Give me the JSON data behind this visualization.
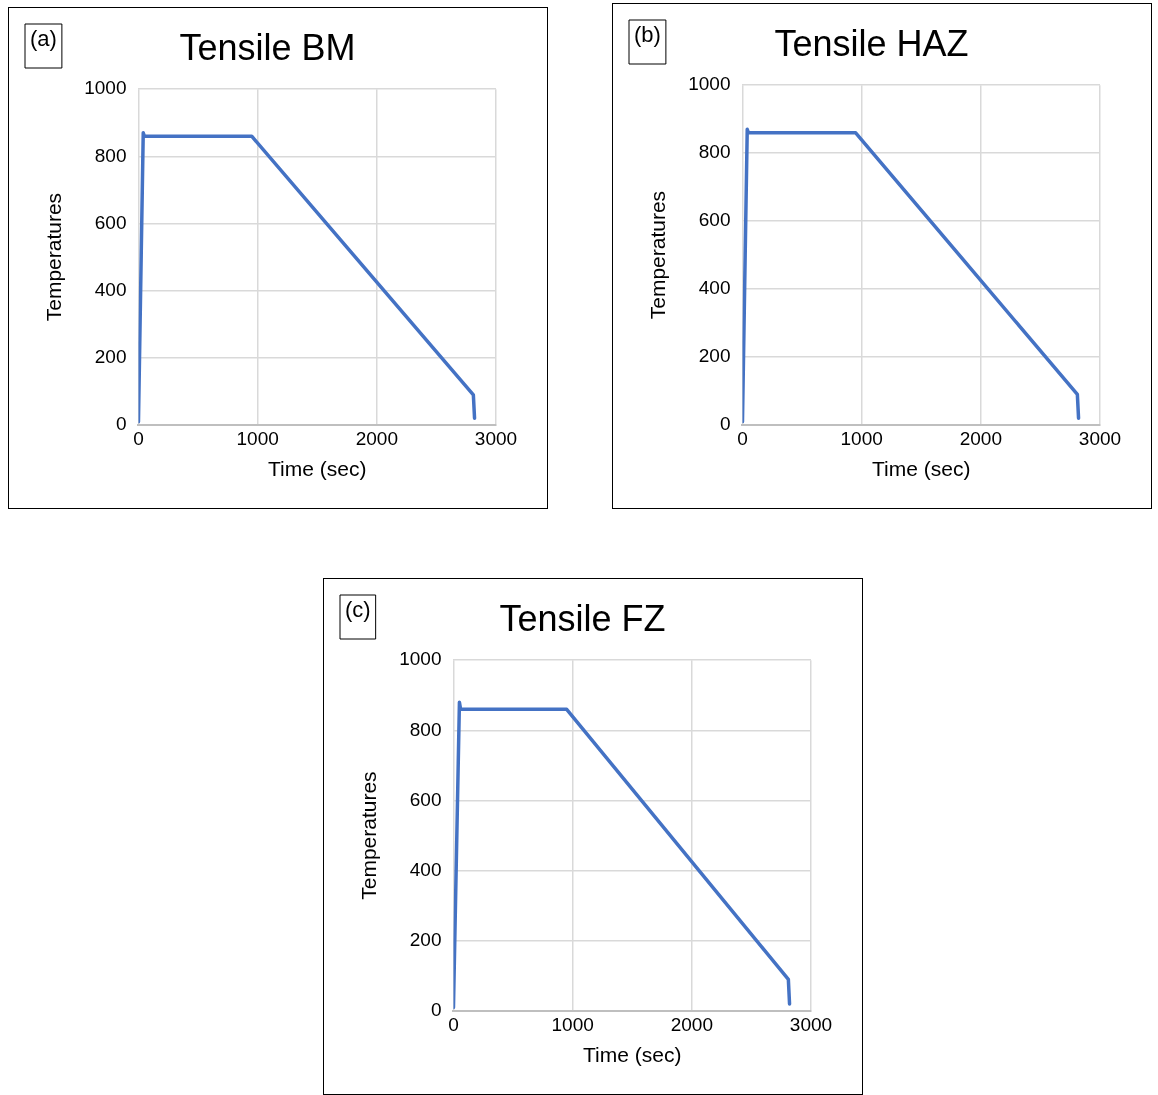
{
  "chart_data": [
    {
      "type": "line",
      "title": "Tensile BM",
      "xlabel": "Time (sec)",
      "ylabel": "Temperatures",
      "annotations": [
        "(a)"
      ],
      "xlim": [
        0,
        3000
      ],
      "xticks": [
        0,
        1000,
        2000,
        3000
      ],
      "ylim": [
        0,
        1000
      ],
      "yticks": [
        0,
        200,
        400,
        600,
        800,
        1000
      ],
      "grid": true,
      "legend": false,
      "marker": "none",
      "line_style": "solid",
      "series": [
        {
          "color": "#4472c4",
          "x": [
            0,
            40,
            50,
            950,
            2810,
            2820
          ],
          "values": [
            10,
            870,
            860,
            860,
            90,
            20
          ]
        }
      ]
    },
    {
      "type": "line",
      "title": "Tensile HAZ",
      "xlabel": "Time (sec)",
      "ylabel": "Temperatures",
      "annotations": [
        "(b)"
      ],
      "xlim": [
        0,
        3000
      ],
      "xticks": [
        0,
        1000,
        2000,
        3000
      ],
      "ylim": [
        0,
        1000
      ],
      "yticks": [
        0,
        200,
        400,
        600,
        800,
        1000
      ],
      "grid": true,
      "legend": false,
      "marker": "none",
      "line_style": "solid",
      "series": [
        {
          "color": "#4472c4",
          "x": [
            0,
            40,
            50,
            950,
            2810,
            2820
          ],
          "values": [
            10,
            870,
            860,
            860,
            90,
            20
          ]
        }
      ]
    },
    {
      "type": "line",
      "title": "Tensile FZ",
      "xlabel": "Time (sec)",
      "ylabel": "Temperatures",
      "annotations": [
        "(c)"
      ],
      "xlim": [
        0,
        3000
      ],
      "xticks": [
        0,
        1000,
        2000,
        3000
      ],
      "ylim": [
        0,
        1000
      ],
      "yticks": [
        0,
        200,
        400,
        600,
        800,
        1000
      ],
      "grid": true,
      "legend": false,
      "marker": "none",
      "line_style": "solid",
      "series": [
        {
          "color": "#4472c4",
          "x": [
            0,
            50,
            60,
            950,
            2810,
            2820
          ],
          "values": [
            10,
            880,
            860,
            860,
            90,
            20
          ]
        }
      ]
    }
  ]
}
